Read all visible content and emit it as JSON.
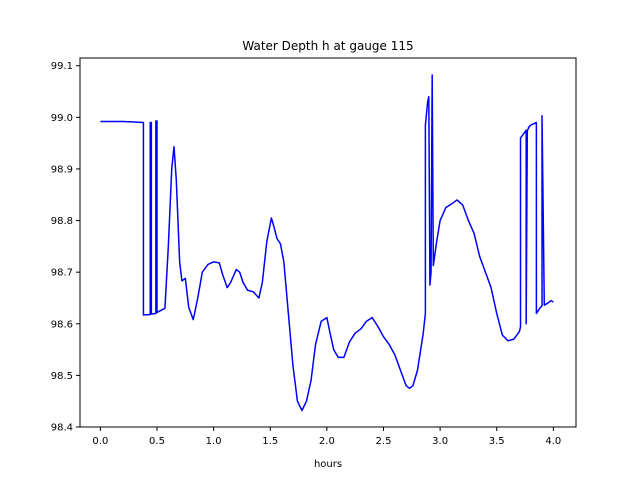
{
  "chart_data": {
    "type": "line",
    "title": "Water Depth h at gauge 115",
    "xlabel": "hours",
    "ylabel": "",
    "xlim": [
      -0.18,
      4.2
    ],
    "ylim": [
      98.4,
      99.115
    ],
    "xticks": [
      0.0,
      0.5,
      1.0,
      1.5,
      2.0,
      2.5,
      3.0,
      3.5,
      4.0
    ],
    "xtick_labels": [
      "0.0",
      "0.5",
      "1.0",
      "1.5",
      "2.0",
      "2.5",
      "3.0",
      "3.5",
      "4.0"
    ],
    "yticks": [
      98.4,
      98.5,
      98.6,
      98.7,
      98.8,
      98.9,
      99.0,
      99.1
    ],
    "ytick_labels": [
      "98.4",
      "98.5",
      "98.6",
      "98.7",
      "98.8",
      "98.9",
      "99.0",
      "99.1"
    ],
    "grid": false,
    "legend": "none",
    "series": [
      {
        "color": "#0000ff",
        "x": [
          0.0,
          0.2,
          0.3,
          0.38,
          0.38,
          0.44,
          0.44,
          0.45,
          0.45,
          0.49,
          0.49,
          0.5,
          0.5,
          0.57,
          0.6,
          0.63,
          0.65,
          0.67,
          0.7,
          0.72,
          0.75,
          0.78,
          0.82,
          0.86,
          0.9,
          0.95,
          1.0,
          1.05,
          1.08,
          1.12,
          1.15,
          1.2,
          1.23,
          1.26,
          1.3,
          1.35,
          1.4,
          1.43,
          1.47,
          1.51,
          1.53,
          1.56,
          1.59,
          1.62,
          1.66,
          1.7,
          1.74,
          1.78,
          1.82,
          1.86,
          1.9,
          1.95,
          2.0,
          2.03,
          2.06,
          2.1,
          2.15,
          2.2,
          2.25,
          2.3,
          2.35,
          2.4,
          2.45,
          2.5,
          2.55,
          2.6,
          2.65,
          2.7,
          2.73,
          2.76,
          2.8,
          2.85,
          2.87,
          2.87,
          2.89,
          2.9,
          2.91,
          2.92,
          2.93,
          2.94,
          2.97,
          3.0,
          3.05,
          3.1,
          3.15,
          3.2,
          3.25,
          3.3,
          3.35,
          3.4,
          3.45,
          3.5,
          3.55,
          3.6,
          3.65,
          3.7,
          3.71,
          3.71,
          3.75,
          3.76,
          3.76,
          3.77,
          3.78,
          3.78,
          3.8,
          3.85,
          3.85,
          3.88,
          3.9,
          3.9,
          3.92,
          3.95,
          3.98,
          4.0
        ],
        "y": [
          98.992,
          98.992,
          98.991,
          98.99,
          98.617,
          98.618,
          98.99,
          98.99,
          98.619,
          98.62,
          98.993,
          98.993,
          98.622,
          98.63,
          98.75,
          98.9,
          98.943,
          98.88,
          98.72,
          98.683,
          98.688,
          98.632,
          98.608,
          98.65,
          98.7,
          98.715,
          98.72,
          98.718,
          98.695,
          98.67,
          98.68,
          98.705,
          98.7,
          98.68,
          98.665,
          98.662,
          98.65,
          98.68,
          98.76,
          98.805,
          98.79,
          98.765,
          98.755,
          98.72,
          98.62,
          98.52,
          98.45,
          98.432,
          98.45,
          98.49,
          98.56,
          98.605,
          98.612,
          98.58,
          98.55,
          98.535,
          98.535,
          98.565,
          98.582,
          98.59,
          98.605,
          98.612,
          98.595,
          98.575,
          98.56,
          98.54,
          98.51,
          98.48,
          98.475,
          98.48,
          98.51,
          98.58,
          98.62,
          98.985,
          99.03,
          99.04,
          98.675,
          98.7,
          99.082,
          98.713,
          98.76,
          98.8,
          98.825,
          98.832,
          98.84,
          98.83,
          98.8,
          98.775,
          98.73,
          98.7,
          98.67,
          98.62,
          98.578,
          98.567,
          98.57,
          98.585,
          98.594,
          98.96,
          98.972,
          98.975,
          98.6,
          98.975,
          98.978,
          98.98,
          98.985,
          98.99,
          98.62,
          98.63,
          98.635,
          99.003,
          98.636,
          98.64,
          98.645,
          98.642
        ]
      }
    ]
  }
}
